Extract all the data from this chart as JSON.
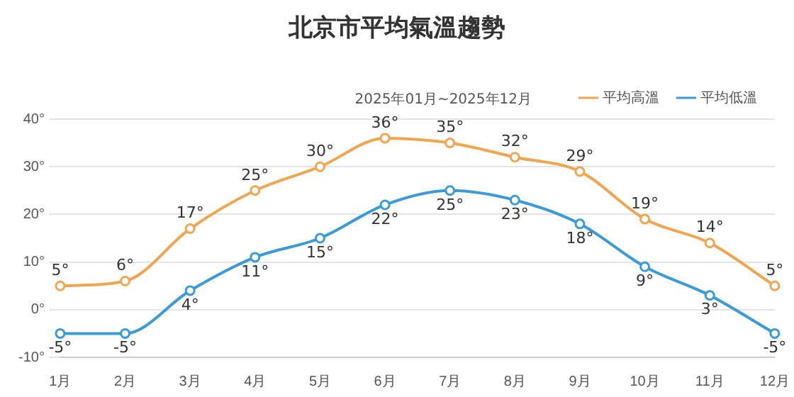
{
  "chart_data": {
    "type": "line",
    "title": "北京市平均氣溫趨勢",
    "subtitle": "2025年01月~2025年12月",
    "categories": [
      "1月",
      "2月",
      "3月",
      "4月",
      "5月",
      "6月",
      "7月",
      "8月",
      "9月",
      "10月",
      "11月",
      "12月"
    ],
    "series": [
      {
        "name": "平均高溫",
        "color": "#f0a552",
        "values": [
          5,
          6,
          17,
          25,
          30,
          36,
          35,
          32,
          29,
          19,
          14,
          5
        ],
        "value_labels": [
          "5°",
          "6°",
          "17°",
          "25°",
          "30°",
          "36°",
          "35°",
          "32°",
          "29°",
          "19°",
          "14°",
          "5°"
        ]
      },
      {
        "name": "平均低溫",
        "color": "#3d9ad8",
        "values": [
          -5,
          -5,
          4,
          11,
          15,
          22,
          25,
          23,
          18,
          9,
          3,
          -5
        ],
        "value_labels": [
          "-5°",
          "-5°",
          "4°",
          "11°",
          "15°",
          "22°",
          "25°",
          "23°",
          "18°",
          "9°",
          "3°",
          "-5°"
        ]
      }
    ],
    "ylim": [
      -10,
      40
    ],
    "yticks": [
      {
        "value": -10,
        "label": "-10°"
      },
      {
        "value": 0,
        "label": "0°"
      },
      {
        "value": 10,
        "label": "10°"
      },
      {
        "value": 20,
        "label": "20°"
      },
      {
        "value": 30,
        "label": "30°"
      },
      {
        "value": 40,
        "label": "40°"
      }
    ],
    "grid": "y",
    "legend": "top right",
    "marker": "circle",
    "line_style": "solid"
  }
}
